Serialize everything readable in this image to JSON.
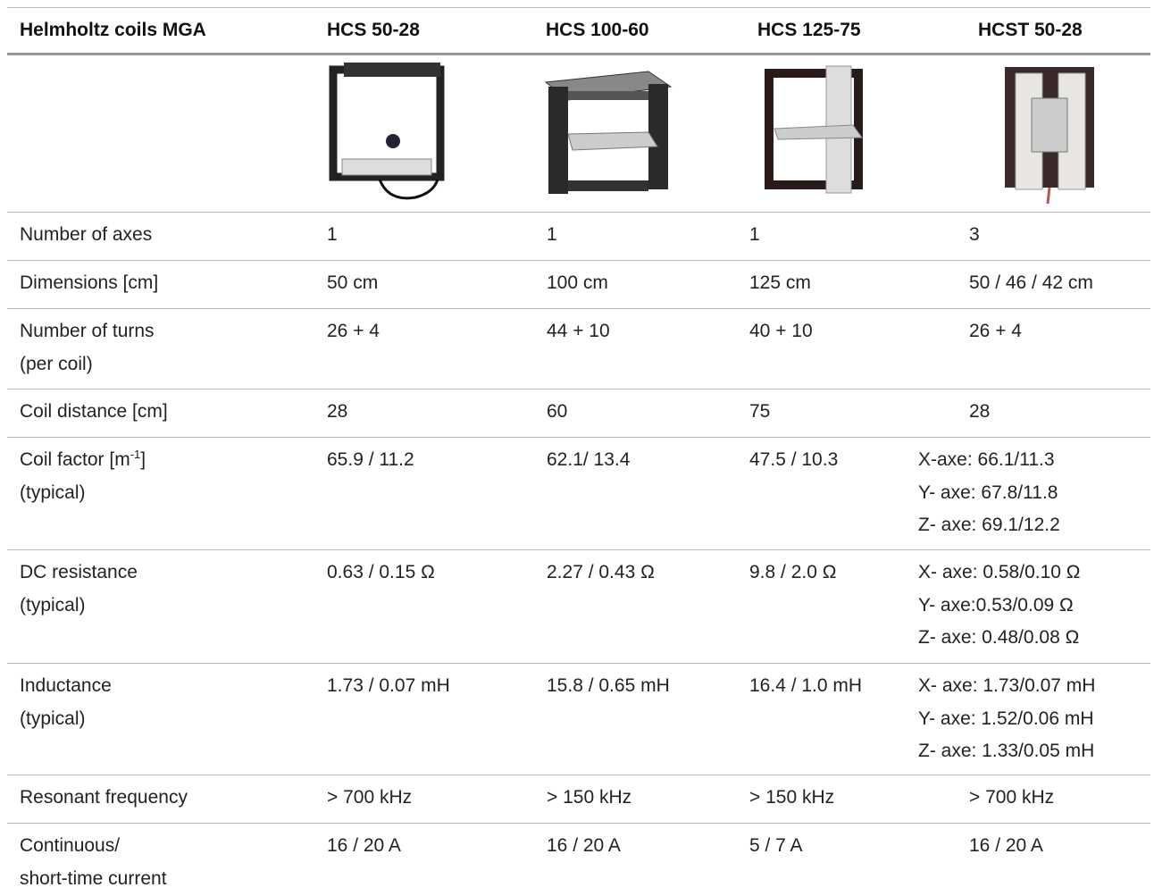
{
  "table": {
    "header": [
      "Helmholtz coils MGA",
      "HCS 50-28",
      "HCS 100-60",
      "HCS 125-75",
      "HCST 50-28"
    ],
    "rows": [
      {
        "label": [
          "Number of axes"
        ],
        "cells": [
          [
            "1"
          ],
          [
            "1"
          ],
          [
            "1"
          ],
          [
            "3"
          ]
        ]
      },
      {
        "label": [
          "Dimensions [cm]"
        ],
        "cells": [
          [
            "50 cm"
          ],
          [
            "100 cm"
          ],
          [
            "125 cm"
          ],
          [
            "50 / 46 / 42 cm"
          ]
        ]
      },
      {
        "label": [
          "Number of turns",
          "(per coil)"
        ],
        "cells": [
          [
            "26 + 4"
          ],
          [
            "44 + 10"
          ],
          [
            "40 + 10"
          ],
          [
            "26 + 4"
          ]
        ]
      },
      {
        "label": [
          "Coil distance [cm]"
        ],
        "cells": [
          [
            "28"
          ],
          [
            "60"
          ],
          [
            "75"
          ],
          [
            "28"
          ]
        ]
      },
      {
        "label": [
          {
            "pre": "Coil factor [m",
            "sup": "-1",
            "post": "]"
          },
          "(typical)"
        ],
        "cells": [
          [
            "65.9 / 11.2"
          ],
          [
            "62.1/ 13.4"
          ],
          [
            "47.5 / 10.3"
          ],
          [
            "X-axe: 66.1/11.3",
            "Y- axe: 67.8/11.8",
            "Z- axe: 69.1/12.2"
          ]
        ]
      },
      {
        "label": [
          "DC resistance",
          "(typical)"
        ],
        "cells": [
          [
            "0.63 / 0.15 Ω"
          ],
          [
            "2.27 / 0.43 Ω"
          ],
          [
            "9.8 / 2.0 Ω"
          ],
          [
            "X- axe: 0.58/0.10 Ω",
            "Y- axe:0.53/0.09 Ω",
            "Z- axe: 0.48/0.08 Ω"
          ]
        ]
      },
      {
        "label": [
          "Inductance",
          "(typical)"
        ],
        "cells": [
          [
            "1.73 / 0.07 mH"
          ],
          [
            "15.8 / 0.65 mH"
          ],
          [
            "16.4 / 1.0 mH"
          ],
          [
            "X- axe: 1.73/0.07 mH",
            "Y- axe: 1.52/0.06 mH",
            "Z- axe: 1.33/0.05 mH"
          ]
        ]
      },
      {
        "label": [
          "Resonant frequency"
        ],
        "cells": [
          [
            "> 700 kHz"
          ],
          [
            "> 150 kHz"
          ],
          [
            "> 150 kHz"
          ],
          [
            "> 700 kHz"
          ]
        ]
      },
      {
        "label": [
          "Continuous/",
          "short-time current"
        ],
        "cells": [
          [
            "16 / 20 A"
          ],
          [
            "16 / 20 A"
          ],
          [
            "5 / 7 A"
          ],
          [
            "16 / 20 A"
          ]
        ]
      }
    ]
  }
}
